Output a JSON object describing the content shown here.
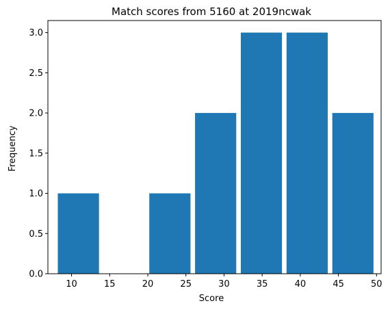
{
  "chart_data": {
    "type": "bar",
    "title": "Match scores from 5160 at 2019ncwak",
    "xlabel": "Score",
    "ylabel": "Frequency",
    "xlim": [
      6.9,
      50.6
    ],
    "ylim": [
      0,
      3.15
    ],
    "x_ticks": [
      10,
      15,
      20,
      25,
      30,
      35,
      40,
      45,
      50
    ],
    "y_ticks": [
      0.0,
      0.5,
      1.0,
      1.5,
      2.0,
      2.5,
      3.0
    ],
    "y_tick_labels": [
      "0.0",
      "0.5",
      "1.0",
      "1.5",
      "2.0",
      "2.5",
      "3.0"
    ],
    "bins": [
      {
        "start": 8.2,
        "end": 13.6,
        "value": 1
      },
      {
        "start": 14.2,
        "end": 19.6,
        "value": 0
      },
      {
        "start": 20.2,
        "end": 25.6,
        "value": 1
      },
      {
        "start": 26.2,
        "end": 31.6,
        "value": 2
      },
      {
        "start": 32.2,
        "end": 37.6,
        "value": 3
      },
      {
        "start": 38.2,
        "end": 43.6,
        "value": 3
      },
      {
        "start": 44.2,
        "end": 49.6,
        "value": 2
      }
    ],
    "bar_color": "#1f77b4",
    "grid": false,
    "legend": "none"
  }
}
